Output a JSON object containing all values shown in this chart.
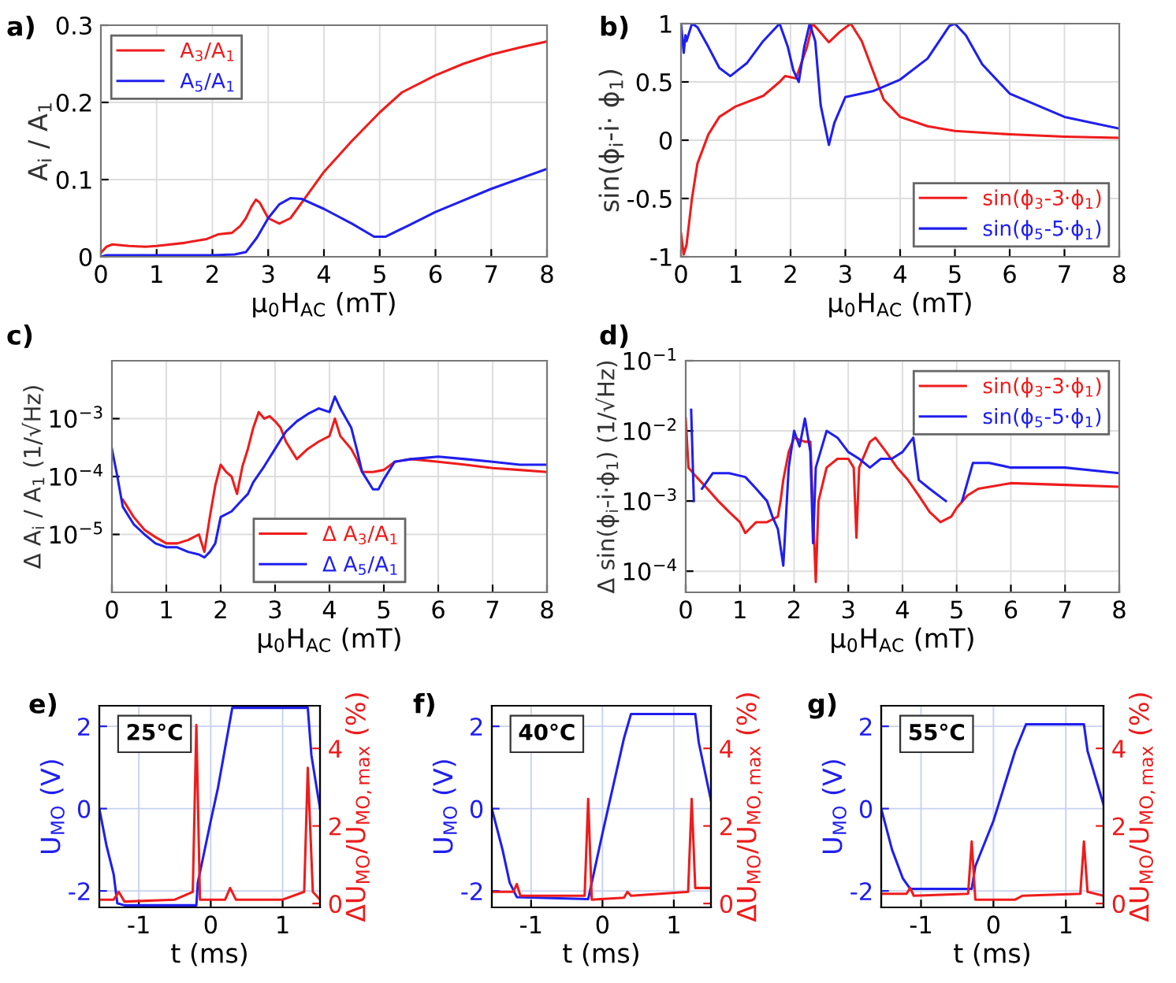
{
  "chart_data": [
    {
      "type": "line",
      "title": "a)",
      "xlabel": "μ$_{0}$H$_{AC}$ (mT)",
      "ylabel": "A$_{i}$ / A$_{1}$",
      "xlim": [
        0,
        8
      ],
      "xticks": [
        0,
        1,
        2,
        3,
        4,
        5,
        6,
        7,
        8
      ],
      "ylim": [
        0,
        0.3
      ],
      "yticks": [
        0,
        0.1,
        0.2,
        0.3
      ],
      "grid": true,
      "legend": "top left",
      "series": [
        {
          "name": "A$_{3}$/A$_{1}$",
          "color": "#ee1c1c",
          "x": [
            0,
            0.1,
            0.2,
            0.5,
            0.8,
            1.0,
            1.5,
            1.9,
            2.1,
            2.35,
            2.5,
            2.6,
            2.7,
            2.78,
            2.85,
            3.0,
            3.2,
            3.4,
            3.6,
            3.8,
            4.0,
            4.5,
            5.0,
            5.4,
            6,
            6.5,
            7,
            7.5,
            8
          ],
          "values": [
            0.005,
            0.013,
            0.016,
            0.014,
            0.013,
            0.014,
            0.018,
            0.023,
            0.029,
            0.031,
            0.04,
            0.05,
            0.065,
            0.074,
            0.07,
            0.05,
            0.043,
            0.05,
            0.07,
            0.09,
            0.11,
            0.15,
            0.187,
            0.213,
            0.235,
            0.25,
            0.262,
            0.271,
            0.279
          ]
        },
        {
          "name": "A$_{5}$/A$_{1}$",
          "color": "#1f1fee",
          "x": [
            0,
            0.1,
            0.5,
            1,
            2,
            2.4,
            2.6,
            2.8,
            3.0,
            3.2,
            3.4,
            3.6,
            4.0,
            4.5,
            4.9,
            5.1,
            5.5,
            6,
            7,
            8
          ],
          "values": [
            0.0,
            0.002,
            0.002,
            0.002,
            0.002,
            0.003,
            0.006,
            0.025,
            0.05,
            0.068,
            0.076,
            0.075,
            0.062,
            0.043,
            0.026,
            0.026,
            0.04,
            0.058,
            0.088,
            0.114
          ]
        }
      ]
    },
    {
      "type": "line",
      "title": "b)",
      "xlabel": "μ$_{0}$H$_{AC}$ (mT)",
      "ylabel": "sin(ϕ$_{i}$-i· ϕ$_{1}$)",
      "xlim": [
        0,
        8
      ],
      "xticks": [
        0,
        1,
        2,
        3,
        4,
        5,
        6,
        7,
        8
      ],
      "ylim": [
        -1,
        1
      ],
      "yticks": [
        -1,
        -0.5,
        0,
        0.5,
        1
      ],
      "grid": true,
      "legend": "bottom right",
      "series": [
        {
          "name": "sin(ϕ$_{3}$-3·ϕ$_{1}$)",
          "color": "#ee1c1c",
          "x": [
            0,
            0.05,
            0.1,
            0.2,
            0.3,
            0.5,
            0.7,
            1,
            1.5,
            1.8,
            1.9,
            2.1,
            2.3,
            2.4,
            2.5,
            2.7,
            2.9,
            3.1,
            3.3,
            3.5,
            3.7,
            4,
            4.5,
            5,
            6,
            7,
            8
          ],
          "values": [
            -0.8,
            -0.98,
            -0.9,
            -0.5,
            -0.2,
            0.05,
            0.2,
            0.29,
            0.38,
            0.5,
            0.55,
            0.53,
            0.8,
            1.0,
            0.95,
            0.84,
            0.93,
            1.0,
            0.85,
            0.6,
            0.35,
            0.2,
            0.12,
            0.08,
            0.05,
            0.03,
            0.02
          ]
        },
        {
          "name": "sin(ϕ$_{5}$-5·ϕ$_{1}$)",
          "color": "#1f1fee",
          "x": [
            0,
            0.05,
            0.08,
            0.1,
            0.2,
            0.3,
            0.5,
            0.7,
            0.9,
            1.2,
            1.5,
            1.8,
            1.95,
            2.05,
            2.15,
            2.25,
            2.35,
            2.45,
            2.55,
            2.7,
            2.8,
            3.0,
            3.5,
            4,
            4.5,
            4.9,
            5.0,
            5.2,
            5.5,
            6,
            7,
            8
          ],
          "values": [
            1.0,
            0.75,
            0.9,
            0.85,
            1.0,
            0.97,
            0.8,
            0.62,
            0.55,
            0.66,
            0.85,
            1.0,
            0.8,
            0.6,
            0.5,
            0.8,
            1.0,
            0.85,
            0.3,
            -0.04,
            0.15,
            0.37,
            0.42,
            0.52,
            0.7,
            0.98,
            1.0,
            0.9,
            0.65,
            0.4,
            0.2,
            0.1
          ]
        }
      ]
    },
    {
      "type": "line",
      "title": "c)",
      "xlabel": "μ$_{0}$H$_{AC}$ (mT)",
      "ylabel": "Δ A$_{i}$ / A$_{1}$ (1/√Hz)",
      "log": "y",
      "xlim": [
        0,
        8
      ],
      "xticks": [
        0,
        1,
        2,
        3,
        4,
        5,
        6,
        7,
        8
      ],
      "ylim": [
        1e-06,
        0.01
      ],
      "yticks": [
        {
          "value": 1e-05,
          "label": "10$^{−5}$"
        },
        {
          "value": 0.0001,
          "label": "10$^{−4}$"
        },
        {
          "value": 0.001,
          "label": "10$^{−3}$"
        }
      ],
      "grid": true,
      "legend": "bottom",
      "series": [
        {
          "name": "Δ A$_{3}$/A$_{1}$",
          "color": "#ee1c1c",
          "x": [
            0.2,
            0.4,
            0.6,
            0.8,
            1.0,
            1.2,
            1.4,
            1.6,
            1.7,
            1.8,
            1.9,
            2.0,
            2.1,
            2.2,
            2.3,
            2.4,
            2.5,
            2.6,
            2.7,
            2.8,
            2.9,
            3.0,
            3.1,
            3.2,
            3.4,
            3.6,
            3.8,
            4.0,
            4.1,
            4.2,
            4.4,
            4.5,
            4.6,
            4.8,
            5.0,
            5.2,
            5.5,
            6,
            6.5,
            7,
            7.5,
            8
          ],
          "values": [
            4e-05,
            2e-05,
            1.2e-05,
            9e-06,
            7e-06,
            7e-06,
            8e-06,
            1e-05,
            5e-06,
            2e-05,
            7e-05,
            0.00016,
            0.00012,
            0.0001,
            5e-05,
            0.00015,
            0.0003,
            0.0007,
            0.0013,
            0.001,
            0.0011,
            0.0009,
            0.0007,
            0.0004,
            0.0002,
            0.0003,
            0.0004,
            0.0005,
            0.001,
            0.0005,
            0.0003,
            0.0002,
            0.00012,
            0.00012,
            0.00013,
            0.00018,
            0.0002,
            0.00018,
            0.00016,
            0.00014,
            0.00013,
            0.00012
          ]
        },
        {
          "name": "Δ A$_{5}$/A$_{1}$",
          "color": "#1f1fee",
          "x": [
            0,
            0.1,
            0.2,
            0.4,
            0.6,
            0.8,
            1.0,
            1.2,
            1.4,
            1.6,
            1.7,
            1.8,
            1.9,
            2.0,
            2.2,
            2.4,
            2.5,
            2.6,
            2.8,
            3.0,
            3.2,
            3.4,
            3.6,
            3.8,
            4.0,
            4.1,
            4.2,
            4.4,
            4.5,
            4.6,
            4.8,
            4.9,
            5.0,
            5.2,
            5.5,
            6,
            6.5,
            7,
            7.5,
            8
          ],
          "values": [
            0.0003,
            0.0001,
            3e-05,
            1.5e-05,
            1e-05,
            7e-06,
            6e-06,
            6e-06,
            5e-06,
            4.5e-06,
            4e-06,
            5e-06,
            7e-06,
            2e-05,
            2.5e-05,
            4e-05,
            5e-05,
            8e-05,
            0.00015,
            0.0003,
            0.0006,
            0.0009,
            0.0012,
            0.0015,
            0.0013,
            0.0024,
            0.0015,
            0.0007,
            0.0003,
            0.00012,
            6e-05,
            6e-05,
            9e-05,
            0.00018,
            0.0002,
            0.00022,
            0.0002,
            0.00018,
            0.00016,
            0.00016
          ]
        }
      ]
    },
    {
      "type": "line",
      "title": "d)",
      "xlabel": "μ$_{0}$H$_{AC}$ (mT)",
      "ylabel": "Δ sin(ϕ$_{i}$-i·ϕ$_{1}$) (1/√Hz)",
      "log": "y",
      "xlim": [
        0,
        8
      ],
      "xticks": [
        0,
        1,
        2,
        3,
        4,
        5,
        6,
        7,
        8
      ],
      "ylim": [
        5e-05,
        0.1
      ],
      "yticks": [
        {
          "value": 0.0001,
          "label": "10$^{−4}$"
        },
        {
          "value": 0.001,
          "label": "10$^{−3}$"
        },
        {
          "value": 0.01,
          "label": "10$^{−2}$"
        },
        {
          "value": 0.1,
          "label": "10$^{−1}$"
        }
      ],
      "grid": true,
      "legend": "top right",
      "series": [
        {
          "name": "sin(ϕ$_{3}$-3·ϕ$_{1}$)",
          "color": "#ee1c1c",
          "x": [
            0,
            0.05,
            0.2,
            0.4,
            0.6,
            0.8,
            1.0,
            1.1,
            1.3,
            1.5,
            1.7,
            1.75,
            1.8,
            1.9,
            2.0,
            2.2,
            2.3,
            2.4,
            2.45,
            2.6,
            2.8,
            3.0,
            3.1,
            3.15,
            3.2,
            3.4,
            3.5,
            3.7,
            3.9,
            4.1,
            4.3,
            4.5,
            4.7,
            4.9,
            5.0,
            5.2,
            5.4,
            6,
            7,
            8
          ],
          "values": [
            0.015,
            0.003,
            0.0022,
            0.0015,
            0.001,
            0.0007,
            0.0005,
            0.00035,
            0.0005,
            0.0005,
            0.0006,
            0.001,
            0.002,
            0.005,
            0.008,
            0.007,
            0.007,
            7e-05,
            0.001,
            0.003,
            0.004,
            0.004,
            0.003,
            0.0003,
            0.003,
            0.007,
            0.008,
            0.005,
            0.003,
            0.002,
            0.0012,
            0.0007,
            0.0005,
            0.0006,
            0.0008,
            0.0012,
            0.0015,
            0.0018,
            0.0017,
            0.0016
          ]
        },
        {
          "name": "sin(ϕ$_{5}$-5·ϕ$_{1}$)",
          "color": "#1f1fee",
          "x": [
            0.1,
            0.15,
            0.2,
            0.3,
            0.5,
            0.8,
            1.1,
            1.3,
            1.5,
            1.6,
            1.7,
            1.8,
            1.9,
            2.0,
            2.1,
            2.2,
            2.3,
            2.35,
            2.4,
            2.6,
            2.8,
            3.0,
            3.2,
            3.4,
            3.6,
            3.8,
            4.0,
            4.2,
            4.3,
            4.5,
            4.8,
            4.95,
            5.05,
            5.1,
            5.3,
            5.6,
            6,
            7,
            8
          ],
          "values": [
            0.02,
            0.001,
            null,
            0.0015,
            0.0025,
            0.0025,
            0.0022,
            0.0015,
            0.001,
            0.0006,
            0.0004,
            0.00012,
            0.003,
            0.01,
            0.006,
            0.015,
            0.005,
            0.00025,
            0.003,
            0.01,
            0.008,
            0.005,
            0.004,
            0.003,
            0.004,
            0.004,
            0.005,
            0.008,
            0.002,
            0.0015,
            0.001,
            null,
            null,
            0.001,
            0.0035,
            0.0035,
            0.003,
            0.003,
            0.0025
          ]
        }
      ]
    },
    {
      "type": "line",
      "title": "e)",
      "xlabel": "t (ms)",
      "ylabel": "U$_{MO}$ (V)",
      "y2label": "ΔU$_{MO}$/U$_{MO,max}$ (%)",
      "annotations": [
        "25°C"
      ],
      "xlim": [
        -1.55,
        1.52
      ],
      "xticks": [
        -1,
        0,
        1
      ],
      "ylim": [
        -2.4,
        2.5
      ],
      "yticks": [
        -2,
        0,
        2
      ],
      "y2lim": [
        -0.1,
        5.1
      ],
      "y2ticks": [
        0,
        2,
        4
      ],
      "grid": true,
      "series": [
        {
          "color": "#1f1fee",
          "x": [
            -1.55,
            -1.45,
            -1.35,
            -1.3,
            -1.2,
            -0.2,
            -0.18,
            0,
            0.1,
            0.3,
            1.35,
            1.4,
            1.52
          ],
          "values": [
            0.0,
            -0.9,
            -1.6,
            -2.3,
            -2.35,
            -2.35,
            -1.8,
            -0.3,
            0.5,
            2.45,
            2.45,
            1.3,
            0
          ]
        },
        {
          "color": "#ee1c1c",
          "axis": "y2",
          "x": [
            -1.55,
            -1.35,
            -1.28,
            -1.2,
            -0.5,
            -0.25,
            -0.2,
            -0.15,
            0.2,
            0.27,
            0.35,
            1.0,
            1.3,
            1.35,
            1.42,
            1.52
          ],
          "values": [
            0.1,
            0.1,
            0.3,
            0.05,
            0.1,
            0.3,
            4.6,
            0.1,
            0.1,
            0.4,
            0.1,
            0.1,
            0.3,
            3.5,
            0.3,
            0.1
          ]
        }
      ]
    },
    {
      "type": "line",
      "title": "f)",
      "xlabel": "t (ms)",
      "ylabel": "U$_{MO}$ (V)",
      "y2label": "ΔU$_{MO}$/U$_{MO,max}$ (%)",
      "annotations": [
        "40°C"
      ],
      "xlim": [
        -1.55,
        1.52
      ],
      "xticks": [
        -1,
        0,
        1
      ],
      "ylim": [
        -2.4,
        2.5
      ],
      "yticks": [
        -2,
        0,
        2
      ],
      "y2lim": [
        -0.1,
        5.1
      ],
      "y2ticks": [
        0,
        2,
        4
      ],
      "grid": true,
      "series": [
        {
          "color": "#1f1fee",
          "x": [
            -1.55,
            -1.4,
            -1.3,
            -1.2,
            -0.2,
            -0.15,
            0,
            0.3,
            0.4,
            1.3,
            1.35,
            1.52
          ],
          "values": [
            0,
            -1.0,
            -1.8,
            -2.15,
            -2.2,
            -1.8,
            -0.6,
            1.7,
            2.3,
            2.3,
            1.6,
            0.2
          ]
        },
        {
          "color": "#ee1c1c",
          "axis": "y2",
          "x": [
            -1.55,
            -1.25,
            -1.2,
            -1.15,
            -0.25,
            -0.2,
            -0.15,
            0.3,
            0.35,
            0.4,
            1.2,
            1.25,
            1.3,
            1.52
          ],
          "values": [
            0.3,
            0.3,
            0.5,
            0.2,
            0.2,
            2.7,
            0.1,
            0.15,
            0.3,
            0.2,
            0.3,
            2.7,
            0.4,
            0.4
          ]
        }
      ]
    },
    {
      "type": "line",
      "title": "g)",
      "xlabel": "t (ms)",
      "ylabel": "U$_{MO}$ (V)",
      "y2label": "ΔU$_{MO}$/U$_{MO,max}$ (%)",
      "annotations": [
        "55°C"
      ],
      "xlim": [
        -1.55,
        1.52
      ],
      "xticks": [
        -1,
        0,
        1
      ],
      "ylim": [
        -2.4,
        2.5
      ],
      "yticks": [
        -2,
        0,
        2
      ],
      "y2lim": [
        -0.1,
        5.1
      ],
      "y2ticks": [
        0,
        2,
        4
      ],
      "grid": true,
      "series": [
        {
          "color": "#1f1fee",
          "x": [
            -1.55,
            -1.4,
            -1.25,
            -1.15,
            -0.3,
            -0.25,
            0,
            0.3,
            0.45,
            1.25,
            1.3,
            1.52
          ],
          "values": [
            0,
            -1.0,
            -1.7,
            -1.95,
            -1.95,
            -1.4,
            -0.3,
            1.4,
            2.05,
            2.05,
            1.4,
            0.1
          ]
        },
        {
          "color": "#ee1c1c",
          "axis": "y2",
          "x": [
            -1.55,
            -1.2,
            -1.15,
            -1.1,
            -0.35,
            -0.3,
            -0.25,
            0.3,
            0.4,
            1.2,
            1.25,
            1.3,
            1.52
          ],
          "values": [
            0.25,
            0.25,
            0.4,
            0.2,
            0.25,
            1.6,
            0.1,
            0.1,
            0.2,
            0.25,
            1.6,
            0.3,
            0.2
          ]
        }
      ]
    }
  ]
}
